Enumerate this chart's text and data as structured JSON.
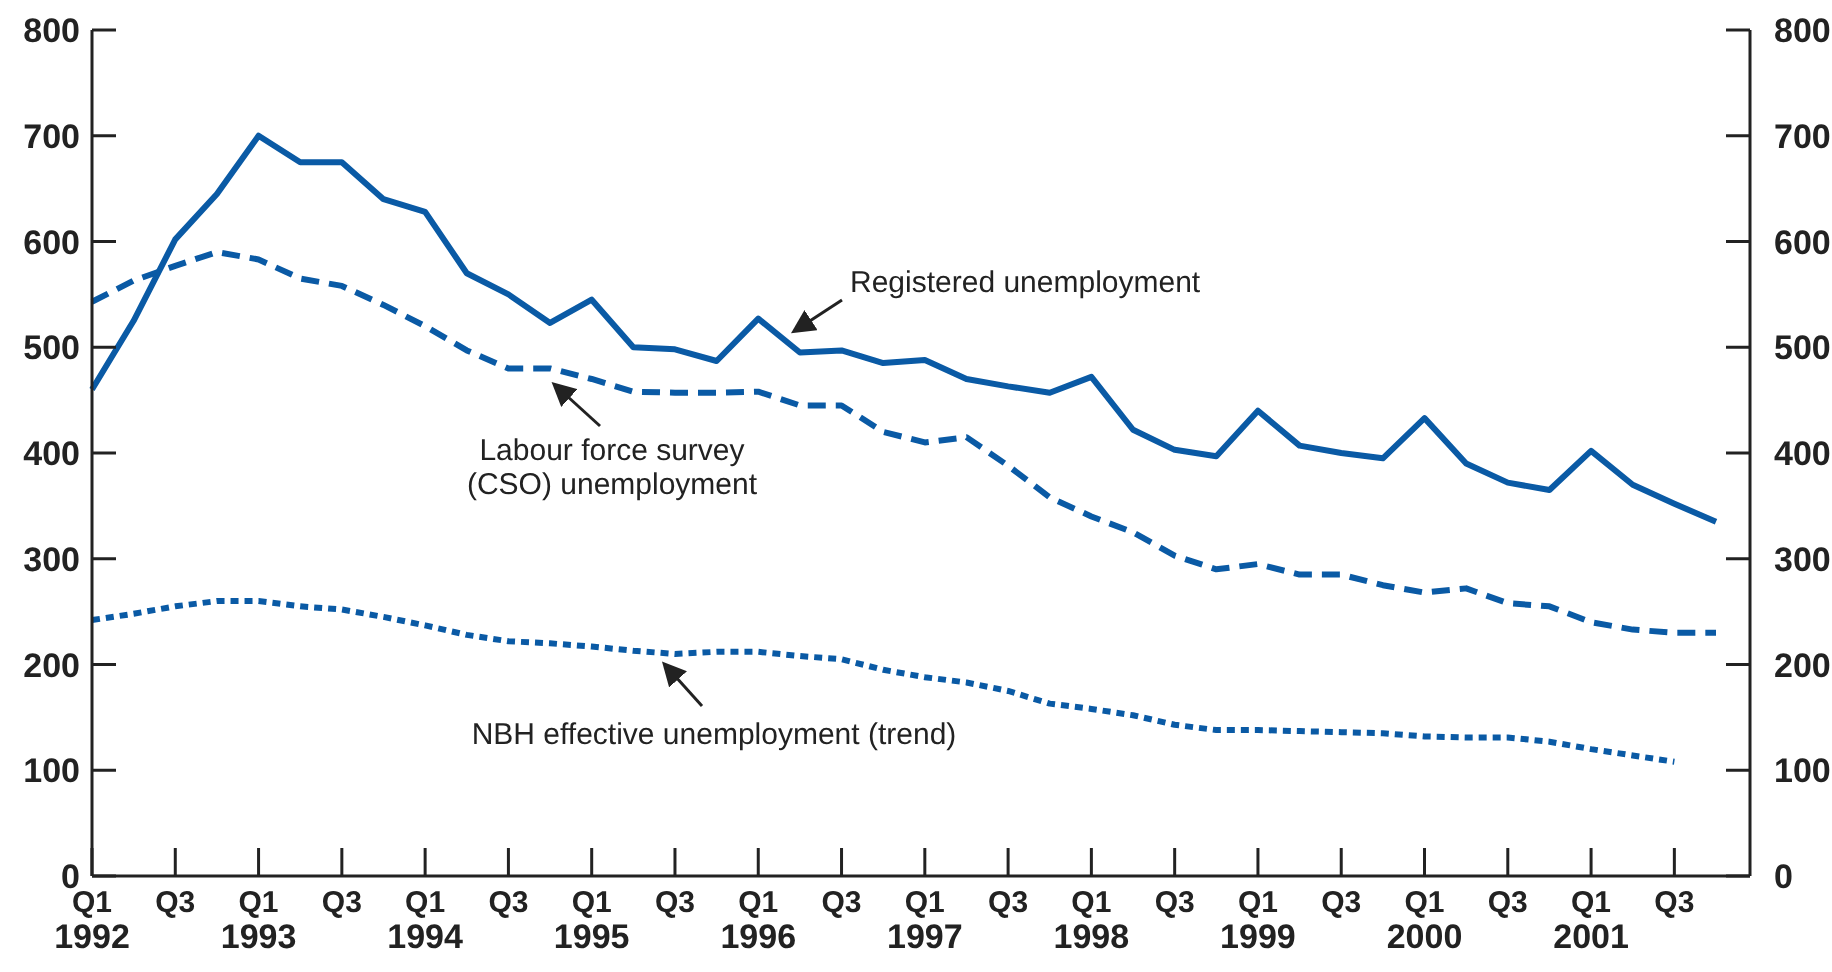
{
  "chart_data": {
    "type": "line",
    "categories": [
      "Q1 1992",
      null,
      "Q3",
      null,
      "Q1 1993",
      null,
      "Q3",
      null,
      "Q1 1994",
      null,
      "Q3",
      null,
      "Q1 1995",
      null,
      "Q3",
      null,
      "Q1 1996",
      null,
      "Q3",
      null,
      "Q1 1997",
      null,
      "Q3",
      null,
      "Q1 1998",
      null,
      "Q3",
      null,
      "Q1 1999",
      null,
      "Q3",
      null,
      "Q1 2000",
      null,
      "Q3",
      null,
      "Q1 2001",
      null,
      "Q3",
      null
    ],
    "series": [
      {
        "color": "#0a5aa5",
        "line_style": "solid",
        "values": [
          460,
          525,
          602,
          645,
          700,
          675,
          675,
          640,
          628,
          570,
          550,
          523,
          545,
          500,
          498,
          487,
          527,
          495,
          497,
          485,
          488,
          470,
          463,
          457,
          472,
          422,
          403,
          397,
          440,
          407,
          400,
          395,
          433,
          390,
          372,
          365,
          402,
          370,
          352,
          335
        ]
      },
      {
        "color": "#0a5aa5",
        "line_style": "dashed",
        "values": [
          543,
          563,
          577,
          590,
          583,
          565,
          558,
          540,
          520,
          497,
          480,
          480,
          470,
          458,
          457,
          457,
          458,
          445,
          445,
          420,
          410,
          415,
          388,
          358,
          340,
          325,
          303,
          290,
          295,
          285,
          285,
          275,
          268,
          272,
          258,
          255,
          240,
          233,
          230,
          230
        ]
      },
      {
        "color": "#0a5aa5",
        "line_style": "dotted",
        "values": [
          242,
          248,
          255,
          260,
          260,
          255,
          252,
          245,
          237,
          228,
          222,
          220,
          217,
          213,
          210,
          212,
          212,
          208,
          205,
          195,
          188,
          183,
          175,
          163,
          158,
          152,
          143,
          138,
          138,
          137,
          136,
          135,
          132,
          131,
          131,
          127,
          120,
          114,
          108,
          null
        ]
      }
    ],
    "annotations": [
      "Registered unemployment",
      "Labour force survey (CSO) unemployment",
      "NBH effective unemployment (trend)"
    ],
    "ylim": [
      0,
      800
    ],
    "yticks": [
      0,
      100,
      200,
      300,
      400,
      500,
      600,
      700,
      800
    ],
    "y2lim": [
      0,
      800
    ],
    "y2ticks": [
      0,
      100,
      200,
      300,
      400,
      500,
      600,
      700,
      800
    ],
    "marker": "none"
  }
}
